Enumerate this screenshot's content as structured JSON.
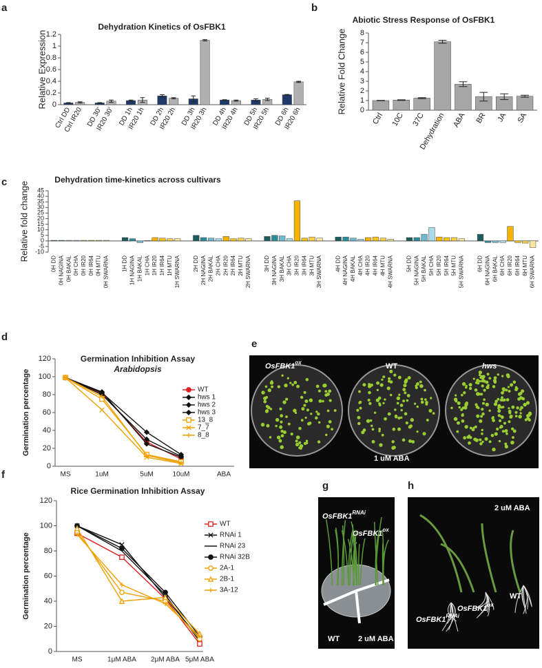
{
  "chart_data": [
    {
      "type": "bar",
      "panel_label": "a",
      "title": "Dehydration Kinetics of OsFBK1",
      "ylabel": "Relative Expression",
      "categories": [
        "Ctrl DD",
        "Ctrl IR20",
        "DD 30'",
        "IR20 30'",
        "DD 1h",
        "IR20 1h",
        "DD 2h",
        "IR20 2h",
        "DD 3h",
        "IR20 3h",
        "DD 4h",
        "IR20 4h",
        "DD 5h",
        "IR20 5h",
        "DD 6h",
        "IR20 6h"
      ],
      "values": [
        0.03,
        0.04,
        0.03,
        0.06,
        0.07,
        0.08,
        0.15,
        0.11,
        0.1,
        1.1,
        0.08,
        0.07,
        0.08,
        0.09,
        0.17,
        0.39
      ],
      "errors": [
        0.005,
        0.01,
        0.005,
        0.02,
        0.01,
        0.04,
        0.02,
        0.01,
        0.05,
        0.01,
        0.005,
        0.01,
        0.02,
        0.02,
        0.005,
        0.01
      ],
      "colors": [
        "#1f3a68",
        "#b0b0b0"
      ],
      "ylim": [
        0,
        1.2
      ],
      "yticks": [
        0,
        0.2,
        0.4,
        0.6,
        0.8,
        1,
        1.2
      ]
    },
    {
      "type": "bar",
      "panel_label": "b",
      "title": "Abiotic Stress Response of OsFBK1",
      "ylabel": "Relative Fold Change",
      "categories": [
        "Ctrl",
        "10C",
        "37C",
        "Dehydration",
        "ABA",
        "BR",
        "JA",
        "SA"
      ],
      "values": [
        1,
        1.05,
        1.25,
        7.1,
        2.7,
        1.4,
        1.4,
        1.45
      ],
      "errors": [
        0.02,
        0.03,
        0.05,
        0.15,
        0.25,
        0.45,
        0.3,
        0.1
      ],
      "colors": [
        "#a6a6a6"
      ],
      "ylim": [
        0,
        8
      ],
      "yticks": [
        0,
        1,
        2,
        3,
        4,
        5,
        6,
        7,
        8
      ]
    },
    {
      "type": "bar",
      "panel_label": "c",
      "title": "Dehydration time-kinetics across cultivars",
      "ylabel": "Relative fold change",
      "categories": [
        "0H DD",
        "0H NAGINA",
        "0H BAKAL",
        "0H CHA",
        "0H IR20",
        "0H IR64",
        "0H MTU",
        "0H SWARNA",
        "1H DD",
        "1H NAGINA",
        "1H BAKAL",
        "1H CHA",
        "1H IR20",
        "1H IR64",
        "1H MTU",
        "1H SWARNA",
        "2H DD",
        "2H NAGINA",
        "2H BAKAL",
        "2H CHA",
        "2H IR20",
        "2H IR64",
        "2H MTU",
        "2H SWARNA",
        "3H DD",
        "3H NAGINA",
        "3H BAKAL",
        "3H CHA",
        "3H IR20",
        "3H IR64",
        "3H MTU",
        "3H SWARNA",
        "4H DD",
        "4H NAGINA",
        "4H BAKAL",
        "4H CHA",
        "4H IR20",
        "4H IR64",
        "4H MTU",
        "4H SWARNA",
        "5H DD",
        "5H NAGINA",
        "5H BAKAL",
        "5H CHA",
        "5H IR20",
        "5H IR64",
        "5H MTU",
        "5H SWARNA",
        "6H DD",
        "6H NAGINA",
        "6H BAKAL",
        "6H CHA",
        "6H IR20",
        "6H IR64",
        "6H MTU",
        "6H SWARNA"
      ],
      "values": [
        0.5,
        0.5,
        0.5,
        0.5,
        0.5,
        0.5,
        0.5,
        0.5,
        3,
        2,
        -1.5,
        0.3,
        3,
        2.5,
        2,
        2,
        5,
        3,
        2.5,
        2,
        4,
        2,
        2.5,
        2,
        4,
        5,
        4.5,
        2,
        36,
        2.5,
        3.5,
        2.5,
        3.5,
        3.5,
        2.5,
        1.5,
        3,
        3.5,
        2.5,
        1.5,
        3,
        3,
        6,
        12,
        3.5,
        3,
        3,
        2,
        6,
        -1.5,
        -1.5,
        -1.5,
        13,
        -1.5,
        -2,
        -6
      ],
      "colors": [
        "#1c5c5c",
        "#2c8c9c",
        "#6fb9d0",
        "#a8dcec",
        "#f5b400",
        "#f7c21a",
        "#f9cf4a",
        "#fde7a0"
      ],
      "ylim": [
        -10,
        45
      ],
      "yticks": [
        -10,
        -5,
        0,
        5,
        10,
        15,
        20,
        25,
        30,
        35,
        40,
        45
      ]
    },
    {
      "type": "line",
      "panel_label": "d",
      "title": "Germination Inhibition Assay",
      "subtitle": "Arabidopsis",
      "ylabel": "Germination percentage",
      "categories": [
        "MS",
        "1uM",
        "5uM",
        "10uM",
        "ABA"
      ],
      "ylim": [
        0,
        120
      ],
      "yticks": [
        0,
        20,
        40,
        60,
        80,
        100,
        120
      ],
      "series": [
        {
          "name": "WT",
          "color": "#e02020",
          "marker": "dot",
          "values": [
            99,
            81,
            27,
            8,
            null
          ]
        },
        {
          "name": "hws 1",
          "color": "#111111",
          "marker": "diamond",
          "values": [
            99,
            82,
            38,
            13,
            null
          ]
        },
        {
          "name": "hws 2",
          "color": "#111111",
          "marker": "diamond",
          "values": [
            99,
            80,
            30,
            11,
            null
          ]
        },
        {
          "name": "hws 3",
          "color": "#111111",
          "marker": "diamond",
          "values": [
            99,
            83,
            25,
            10,
            null
          ]
        },
        {
          "name": "13_8",
          "color": "#f0a000",
          "marker": "square",
          "values": [
            99,
            75,
            13,
            5,
            null
          ]
        },
        {
          "name": "7_7",
          "color": "#f0a000",
          "marker": "x",
          "values": [
            99,
            63,
            10,
            3,
            null
          ]
        },
        {
          "name": "8_8",
          "color": "#f0a000",
          "marker": "plus",
          "values": [
            99,
            78,
            12,
            4,
            null
          ]
        }
      ]
    },
    {
      "type": "line",
      "panel_label": "f",
      "title": "Rice Germination Inhibition Assay",
      "ylabel": "Germination percentage",
      "categories": [
        "MS",
        "1μM ABA",
        "2μM ABA",
        "5μM ABA"
      ],
      "ylim": [
        0,
        120
      ],
      "yticks": [
        0,
        20,
        40,
        60,
        80,
        100,
        120
      ],
      "series": [
        {
          "name": "WT",
          "color": "#e02020",
          "marker": "square",
          "values": [
            94,
            75,
            42,
            6
          ]
        },
        {
          "name": "RNAi 1",
          "color": "#111111",
          "marker": "x",
          "values": [
            100,
            85,
            43,
            10
          ]
        },
        {
          "name": "RNAi 23",
          "color": "#111111",
          "marker": "none",
          "values": [
            100,
            80,
            45,
            8
          ]
        },
        {
          "name": "RNAi 32B",
          "color": "#111111",
          "marker": "dot",
          "values": [
            100,
            82,
            47,
            12
          ]
        },
        {
          "name": "2A-1",
          "color": "#f0a000",
          "marker": "circle",
          "values": [
            95,
            47,
            40,
            10
          ]
        },
        {
          "name": "2B-1",
          "color": "#f0a000",
          "marker": "triangle",
          "values": [
            98,
            40,
            43,
            14
          ]
        },
        {
          "name": "3A-12",
          "color": "#f0a000",
          "marker": "plus",
          "values": [
            93,
            53,
            38,
            12
          ]
        }
      ]
    }
  ],
  "photos": [
    {
      "panel_label": "e",
      "labels": [
        {
          "text": "OsFBK1",
          "sup": "ox"
        },
        {
          "text": "WT"
        },
        {
          "text": "hws"
        },
        {
          "text": "1 uM ABA"
        }
      ]
    },
    {
      "panel_label": "g",
      "labels": [
        {
          "text": "OsFBK1",
          "sup": "RNAi"
        },
        {
          "text": "OsFBK1",
          "sup": "ox"
        },
        {
          "text": "WT"
        },
        {
          "text": "2 uM ABA"
        }
      ]
    },
    {
      "panel_label": "h",
      "labels": [
        {
          "text": "2 uM ABA"
        },
        {
          "text": "OsFBK1",
          "sup": "RNAi"
        },
        {
          "text": "OsFBK1",
          "sup": "ox"
        },
        {
          "text": "WT"
        }
      ]
    }
  ]
}
